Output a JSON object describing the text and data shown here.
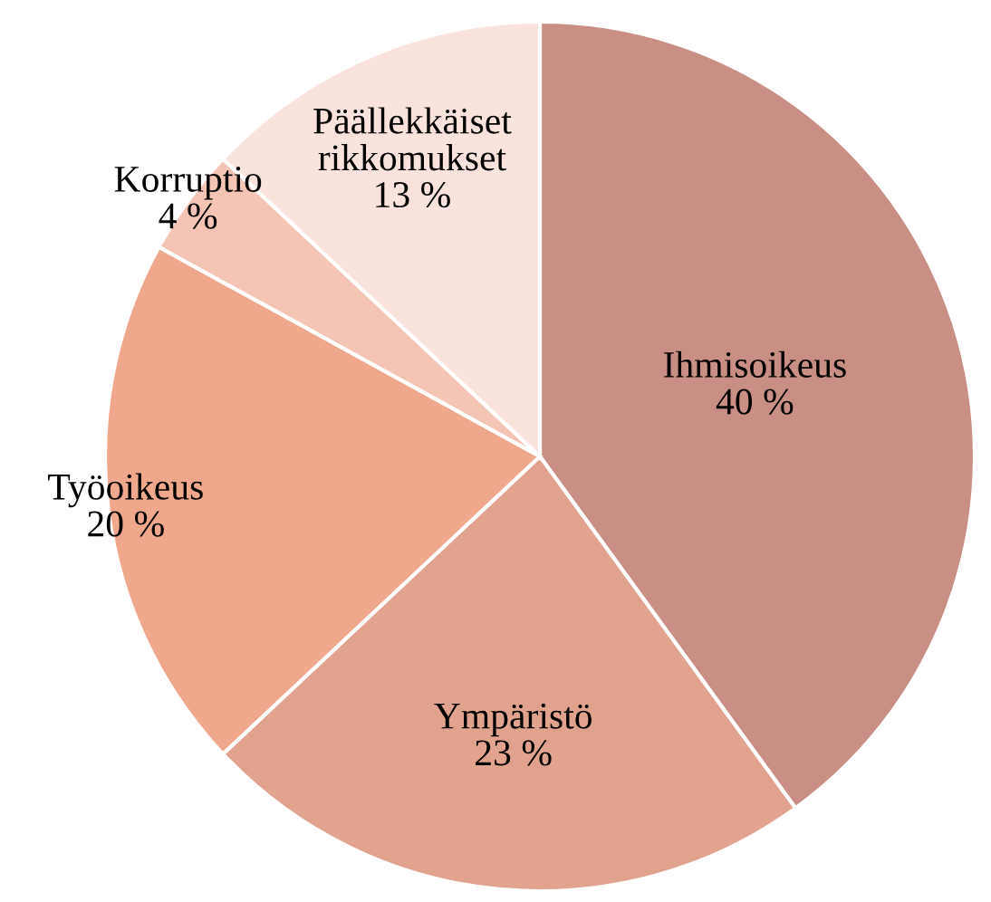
{
  "chart_data": {
    "type": "pie",
    "categories": [
      "Ihmisoikeus",
      "Ympäristö",
      "Työoikeus",
      "Korruptio",
      "Päällekkäiset\nrikkomukset"
    ],
    "values": [
      40,
      23,
      20,
      4,
      13
    ],
    "value_labels": [
      "40 %",
      "23 %",
      "20 %",
      "4 %",
      "13 %"
    ],
    "colors": [
      "#c98f84",
      "#e2a38e",
      "#f0a88c",
      "#f4c4b4",
      "#fbe3dd"
    ],
    "legend": false
  }
}
